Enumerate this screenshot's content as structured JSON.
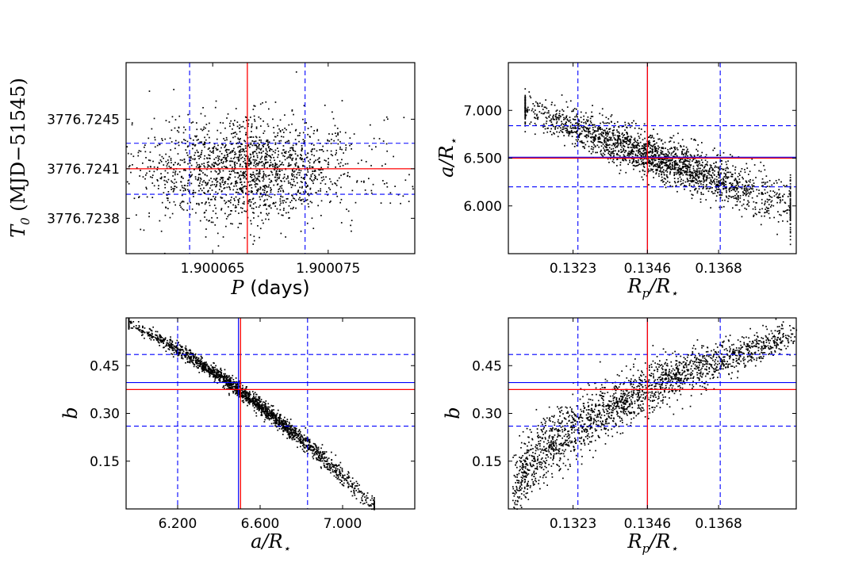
{
  "colors": {
    "median": "#ff0000",
    "injected": "#0000ff",
    "sigma": "#0000ff",
    "points": "#000000"
  },
  "chart_data": [
    {
      "type": "scatter",
      "id": "p-t0",
      "xlabel": {
        "main": "P",
        "rest": " (days)"
      },
      "ylabel": {
        "main": "T",
        "sub": "0",
        "rest": " (MJD−51545)"
      },
      "xlim": [
        1.9000575,
        1.9000825
      ],
      "ylim": [
        3776.72355,
        3776.7249
      ],
      "xticks": [
        1.900065,
        1.900075
      ],
      "xtick_labels": [
        "1.900065",
        "1.900075"
      ],
      "yticks": [
        3776.7238,
        3776.72415,
        3776.7245
      ],
      "ytick_labels": [
        "3776.7238",
        "3776.7241",
        "3776.7245"
      ],
      "median_x": 1.900068,
      "median_y": 3776.72415,
      "sigma_x": [
        1.900063,
        1.900073
      ],
      "sigma_y": [
        3776.72397,
        3776.72433
      ],
      "cloud": {
        "kind": "gauss2d",
        "cx": 1.900068,
        "cy": 3776.72415,
        "sx": 4.8e-06,
        "sy": 0.00018,
        "n": 1800
      }
    },
    {
      "type": "scatter",
      "id": "rp-a",
      "xlabel": {
        "main": "R",
        "sub": "p",
        "mid": "/R",
        "sub2": "⋆"
      },
      "ylabel": {
        "main": "a/R",
        "sub": "⋆"
      },
      "xlim": [
        0.1303,
        0.1392
      ],
      "ylim": [
        5.5,
        7.5
      ],
      "xticks": [
        0.1323,
        0.1346,
        0.1368
      ],
      "xtick_labels": [
        "0.1323",
        "0.1346",
        "0.1368"
      ],
      "yticks": [
        6.0,
        6.5,
        7.0
      ],
      "ytick_labels": [
        "6.000",
        "6.500",
        "7.000"
      ],
      "median_x": 0.1346,
      "median_y": 6.5,
      "injected_x": 0.1346,
      "injected_y": 6.51,
      "sigma_x": [
        0.13245,
        0.13685
      ],
      "sigma_y": [
        6.2,
        6.84
      ],
      "cloud": {
        "kind": "band",
        "x0": 0.1308,
        "x1": 0.139,
        "y0": 7.02,
        "y1": 6.0,
        "curv": 0.0,
        "spread": 0.085,
        "n": 2200
      }
    },
    {
      "type": "scatter",
      "id": "a-b",
      "xlabel": {
        "main": "a/R",
        "sub": "⋆"
      },
      "ylabel": {
        "main": "b"
      },
      "xlim": [
        5.95,
        7.35
      ],
      "ylim": [
        0.0,
        0.6
      ],
      "xticks": [
        6.2,
        6.6,
        7.0
      ],
      "xtick_labels": [
        "6.200",
        "6.600",
        "7.000"
      ],
      "yticks": [
        0.15,
        0.3,
        0.45
      ],
      "ytick_labels": [
        "0.15",
        "0.30",
        "0.45"
      ],
      "median_x": 6.505,
      "median_y": 0.375,
      "injected_x": 6.495,
      "injected_y": 0.397,
      "sigma_x": [
        6.2,
        6.83
      ],
      "sigma_y": [
        0.26,
        0.485
      ],
      "cloud": {
        "kind": "band",
        "x0": 5.96,
        "x1": 7.15,
        "y0": 0.585,
        "y1": 0.005,
        "curv": 0.35,
        "spread": 0.009,
        "n": 2000
      }
    },
    {
      "type": "scatter",
      "id": "rp-b",
      "xlabel": {
        "main": "R",
        "sub": "p",
        "mid": "/R",
        "sub2": "⋆"
      },
      "ylabel": {
        "main": "b"
      },
      "xlim": [
        0.1303,
        0.1392
      ],
      "ylim": [
        0.0,
        0.6
      ],
      "xticks": [
        0.1323,
        0.1346,
        0.1368
      ],
      "xtick_labels": [
        "0.1323",
        "0.1346",
        "0.1368"
      ],
      "yticks": [
        0.15,
        0.3,
        0.45
      ],
      "ytick_labels": [
        "0.15",
        "0.30",
        "0.45"
      ],
      "median_x": 0.1346,
      "median_y": 0.375,
      "injected_x": 0.1346,
      "injected_y": 0.397,
      "sigma_x": [
        0.13245,
        0.13685
      ],
      "sigma_y": [
        0.26,
        0.485
      ],
      "cloud": {
        "kind": "sqrt",
        "x0": 0.1304,
        "x1": 0.1392,
        "y0": 0.0,
        "y1": 0.56,
        "spread": 0.035,
        "n": 2100
      }
    }
  ]
}
